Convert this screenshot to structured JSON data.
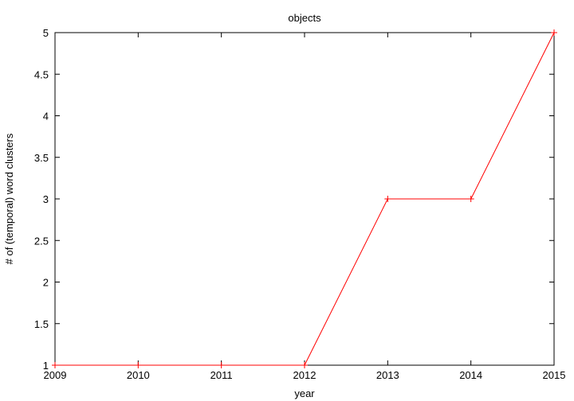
{
  "chart_data": {
    "type": "line",
    "title": "objects",
    "xlabel": "year",
    "ylabel": "# of (temporal) word clusters",
    "xlim": [
      2009,
      2015
    ],
    "ylim": [
      1,
      5
    ],
    "xticks": [
      "2009",
      "2010",
      "2011",
      "2012",
      "2013",
      "2014",
      "2015"
    ],
    "yticks": [
      "1",
      "1.5",
      "2",
      "2.5",
      "3",
      "3.5",
      "4",
      "4.5",
      "5"
    ],
    "grid": false,
    "legend": "none",
    "series": [
      {
        "color": "#ff0000",
        "marker": "plus",
        "x": [
          2009,
          2010,
          2011,
          2012,
          2013,
          2014,
          2015
        ],
        "y": [
          1,
          1,
          1,
          1,
          3,
          3,
          5
        ]
      }
    ]
  }
}
